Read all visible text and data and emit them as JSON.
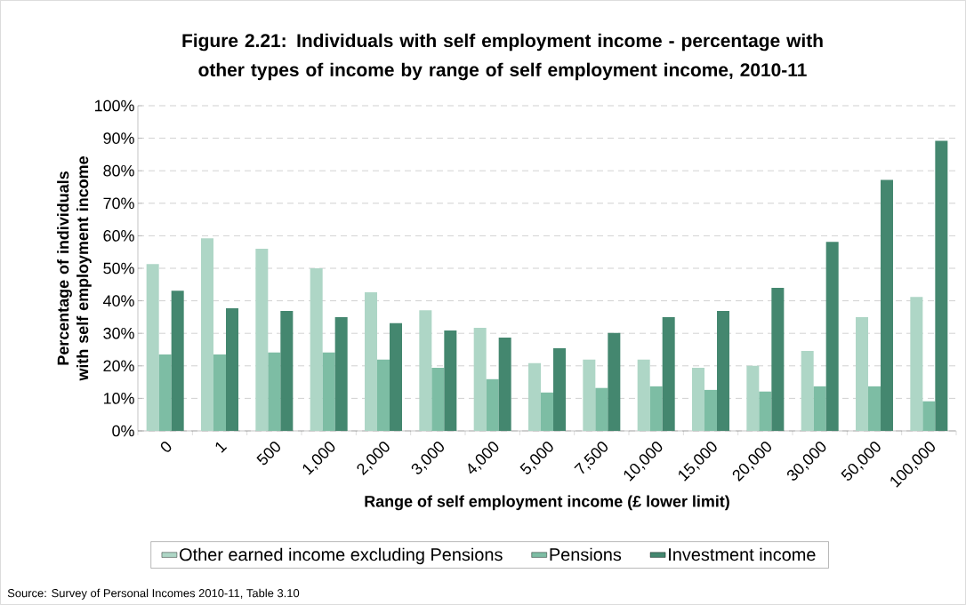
{
  "chart_data": {
    "type": "bar",
    "title": "Figure 2.21: Individuals with self employment income - percentage with other types of income by range of self employment income, 2010-11",
    "xlabel": "Range of self employment income (£ lower limit)",
    "ylabel": "Percentage of individuals with self employment income",
    "categories": [
      "0",
      "1",
      "500",
      "1,000",
      "2,000",
      "3,000",
      "4,000",
      "5,000",
      "7,500",
      "10,000",
      "15,000",
      "20,000",
      "30,000",
      "50,000",
      "100,000"
    ],
    "series": [
      {
        "name": "Other earned income excluding Pensions",
        "color": "#aed6c6",
        "values": [
          51.3,
          59.2,
          56.0,
          50.0,
          42.6,
          37.1,
          31.7,
          20.8,
          21.9,
          21.9,
          19.4,
          20.0,
          24.6,
          35.0,
          41.2
        ]
      },
      {
        "name": "Pensions",
        "color": "#7dbda4",
        "values": [
          23.5,
          23.5,
          24.1,
          24.1,
          21.9,
          19.4,
          15.9,
          11.8,
          13.2,
          13.7,
          12.6,
          12.1,
          13.7,
          13.7,
          9.1
        ]
      },
      {
        "name": "Investment income",
        "color": "#44876f",
        "values": [
          43.1,
          37.7,
          36.9,
          35.0,
          33.1,
          30.9,
          28.7,
          25.4,
          30.1,
          35.0,
          36.9,
          44.0,
          58.1,
          77.2,
          89.2
        ]
      }
    ],
    "ylim": [
      0,
      100
    ],
    "yticks": [
      {
        "value": 0,
        "label": "0%"
      },
      {
        "value": 10,
        "label": "10%"
      },
      {
        "value": 20,
        "label": "20%"
      },
      {
        "value": 30,
        "label": "30%"
      },
      {
        "value": 40,
        "label": "40%"
      },
      {
        "value": 50,
        "label": "50%"
      },
      {
        "value": 60,
        "label": "60%"
      },
      {
        "value": 70,
        "label": "70%"
      },
      {
        "value": 80,
        "label": "80%"
      },
      {
        "value": 90,
        "label": "90%"
      },
      {
        "value": 100,
        "label": "100%"
      }
    ],
    "grid": "y",
    "legend": "bottom",
    "annotations": [
      "Source: Survey of Personal Incomes 2010-11, Table 3.10"
    ]
  }
}
